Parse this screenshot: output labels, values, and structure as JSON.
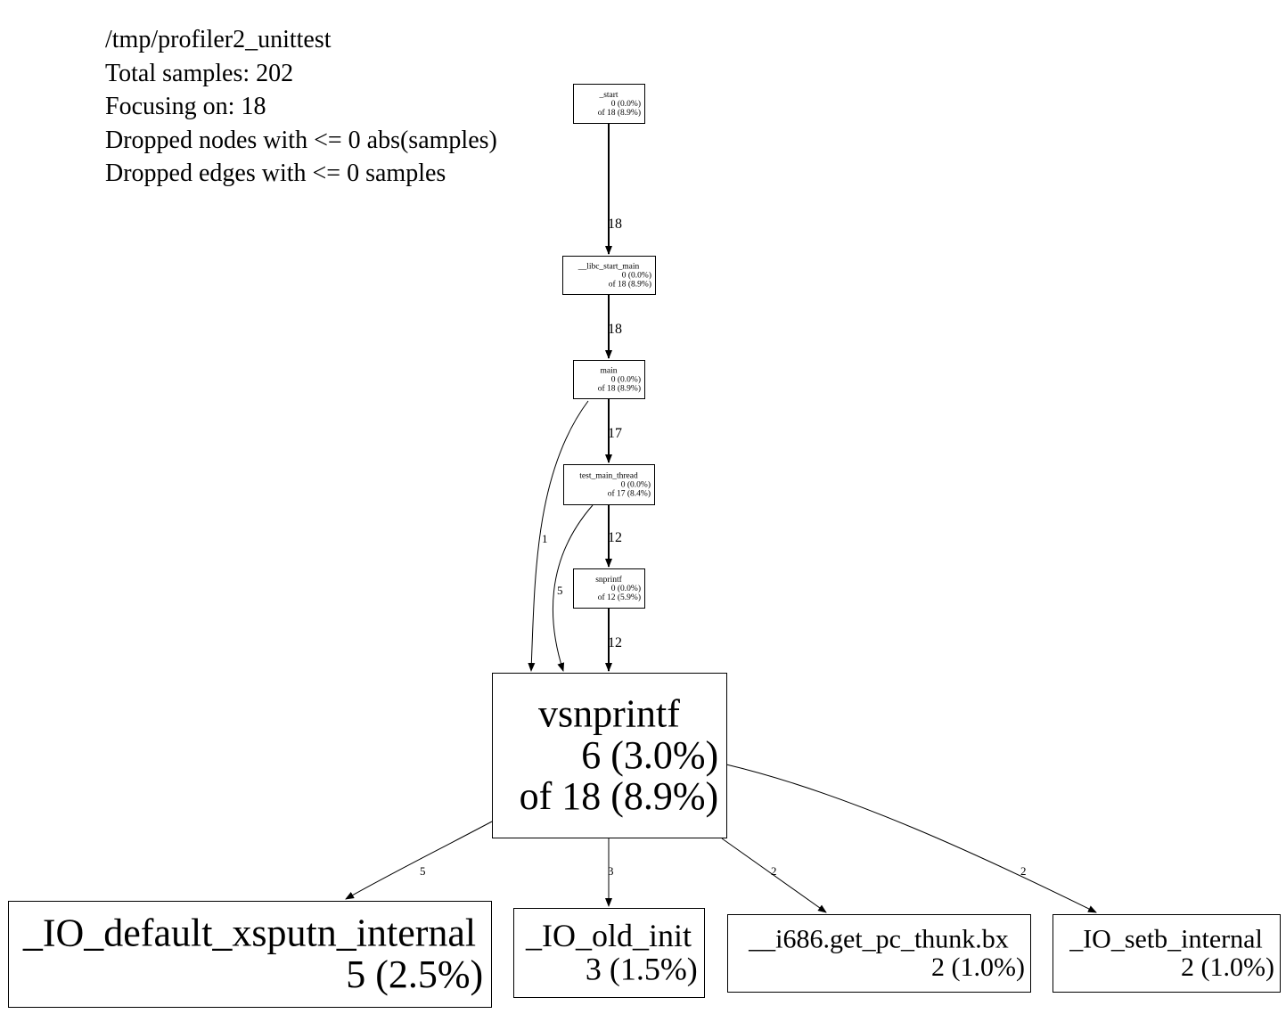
{
  "header": {
    "file": "/tmp/profiler2_unittest",
    "total": "Total samples: 202",
    "focus": "Focusing on: 18",
    "dropped_nodes": "Dropped nodes with <= 0 abs(samples)",
    "dropped_edges": "Dropped edges with <= 0 samples"
  },
  "nodes": [
    {
      "id": "start",
      "lines": [
        "_start",
        "0 (0.0%)",
        "of 18 (8.9%)"
      ]
    },
    {
      "id": "libc_start_main",
      "lines": [
        "__libc_start_main",
        "0 (0.0%)",
        "of 18 (8.9%)"
      ]
    },
    {
      "id": "main",
      "lines": [
        "main",
        "0 (0.0%)",
        "of 18 (8.9%)"
      ]
    },
    {
      "id": "test_main_thread",
      "lines": [
        "test_main_thread",
        "0 (0.0%)",
        "of 17 (8.4%)"
      ]
    },
    {
      "id": "snprintf",
      "lines": [
        "snprintf",
        "0 (0.0%)",
        "of 12 (5.9%)"
      ]
    },
    {
      "id": "vsnprintf",
      "lines": [
        "vsnprintf",
        "6 (3.0%)",
        "of 18 (8.9%)"
      ]
    },
    {
      "id": "io_default_xsputn_internal",
      "lines": [
        "_IO_default_xsputn_internal",
        "5 (2.5%)"
      ]
    },
    {
      "id": "io_old_init",
      "lines": [
        "_IO_old_init",
        "3 (1.5%)"
      ]
    },
    {
      "id": "i686_get_pc_thunk_bx",
      "lines": [
        "__i686.get_pc_thunk.bx",
        "2 (1.0%)"
      ]
    },
    {
      "id": "io_setb_internal",
      "lines": [
        "_IO_setb_internal",
        "2 (1.0%)"
      ]
    }
  ],
  "edges": [
    {
      "from": "start",
      "to": "libc_start_main",
      "label": "18"
    },
    {
      "from": "libc_start_main",
      "to": "main",
      "label": "18"
    },
    {
      "from": "main",
      "to": "test_main_thread",
      "label": "17"
    },
    {
      "from": "main",
      "to": "vsnprintf",
      "label": "1"
    },
    {
      "from": "test_main_thread",
      "to": "snprintf",
      "label": "12"
    },
    {
      "from": "test_main_thread",
      "to": "vsnprintf",
      "label": "5"
    },
    {
      "from": "snprintf",
      "to": "vsnprintf",
      "label": "12"
    },
    {
      "from": "vsnprintf",
      "to": "io_default_xsputn_internal",
      "label": "5"
    },
    {
      "from": "vsnprintf",
      "to": "io_old_init",
      "label": "3"
    },
    {
      "from": "vsnprintf",
      "to": "i686_get_pc_thunk_bx",
      "label": "2"
    },
    {
      "from": "vsnprintf",
      "to": "io_setb_internal",
      "label": "2"
    }
  ]
}
